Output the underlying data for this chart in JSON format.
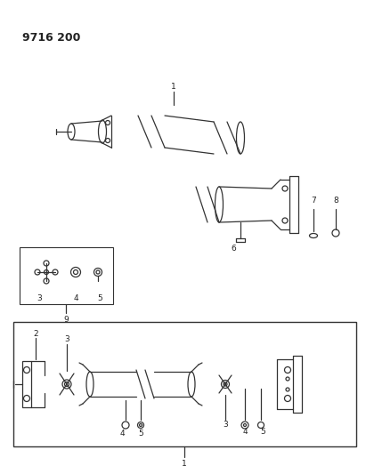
{
  "title_code": "9716 200",
  "background_color": "#ffffff",
  "line_color": "#333333",
  "text_color": "#222222",
  "figsize": [
    4.11,
    5.33
  ],
  "dpi": 100
}
